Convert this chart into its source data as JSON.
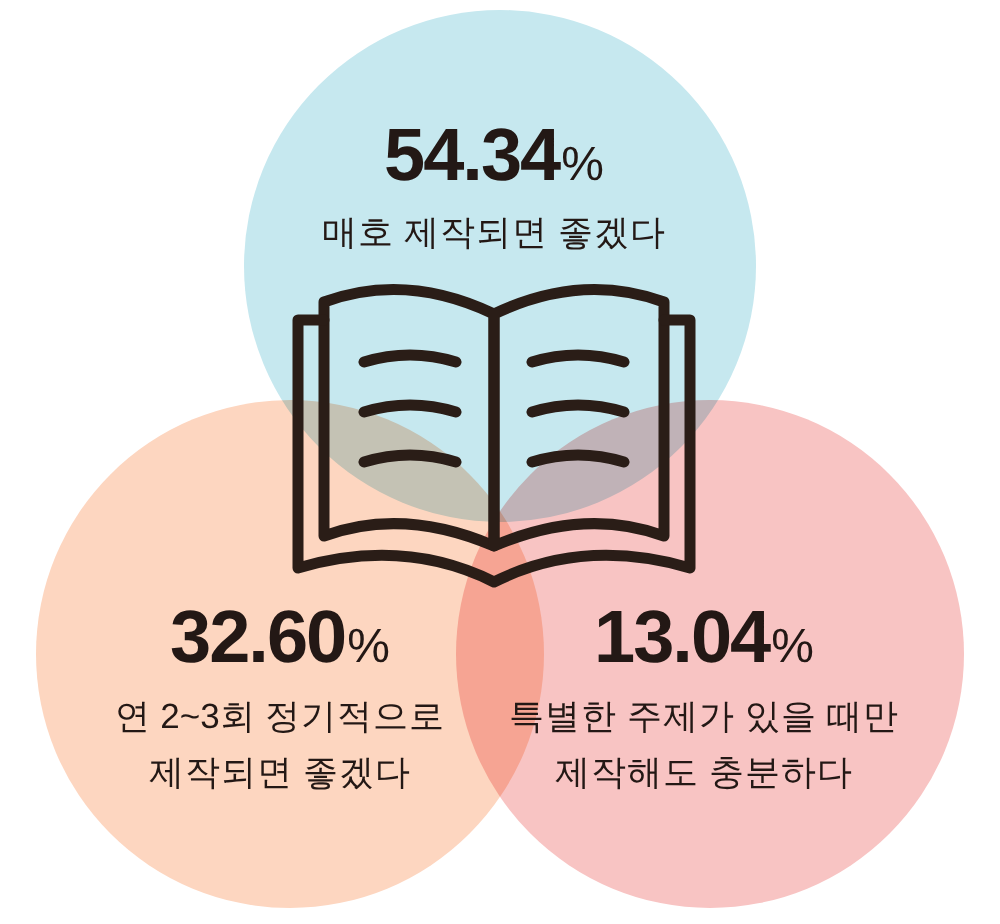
{
  "chart_data": {
    "type": "other",
    "categories": [
      "매호 제작되면 좋겠다",
      "연 2~3회 정기적으로\n제작되면 좋겠다",
      "특별한 주제가 있을 때만\n제작해도 충분하다"
    ],
    "values": [
      54.34,
      32.6,
      13.04
    ],
    "value_labels": [
      "54.34%",
      "32.60%",
      "13.04%"
    ],
    "colors": [
      "#c6e8ef",
      "#fdd6c0",
      "#f8c4c3"
    ]
  }
}
